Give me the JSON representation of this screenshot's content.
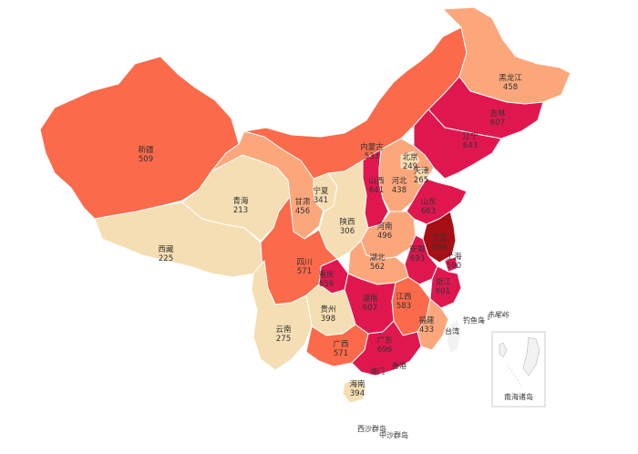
{
  "map": {
    "colors": {
      "level1": "#f5deb3",
      "level2": "#fca77b",
      "level3": "#fb6a4a",
      "level4": "#e0174f",
      "level5": "#a50f15",
      "neutral": "#f2f2f2",
      "border": "#ffffff",
      "water": "#ffffff"
    },
    "regions": {
      "xinjiang": {
        "name": "新疆",
        "value": "509"
      },
      "xizang": {
        "name": "西藏",
        "value": "225"
      },
      "qinghai": {
        "name": "青海",
        "value": "213"
      },
      "gansu": {
        "name": "甘肃",
        "value": "456"
      },
      "ningxia": {
        "name": "宁夏",
        "value": "341"
      },
      "neimenggu": {
        "name": "内蒙古",
        "value": "533"
      },
      "heilongjiang": {
        "name": "黑龙江",
        "value": "458"
      },
      "jilin": {
        "name": "吉林",
        "value": "607"
      },
      "liaoning": {
        "name": "辽宁",
        "value": "643"
      },
      "beijing": {
        "name": "北京",
        "value": "249"
      },
      "tianjin": {
        "name": "天津",
        "value": "265"
      },
      "hebei": {
        "name": "河北",
        "value": "438"
      },
      "shanxi": {
        "name": "山西",
        "value": "641"
      },
      "shandong": {
        "name": "山东",
        "value": "663"
      },
      "shaanxi": {
        "name": "陕西",
        "value": "306"
      },
      "henan": {
        "name": "河南",
        "value": "496"
      },
      "jiangsu": {
        "name": "江苏",
        "value": "939"
      },
      "anhui": {
        "name": "安徽",
        "value": "693"
      },
      "shanghai": {
        "name": "上海",
        "value": "590"
      },
      "hubei": {
        "name": "湖北",
        "value": "562"
      },
      "sichuan": {
        "name": "四川",
        "value": "571"
      },
      "chongqing": {
        "name": "重庆",
        "value": "656"
      },
      "zhejiang": {
        "name": "浙江",
        "value": "601"
      },
      "hunan": {
        "name": "湖南",
        "value": "607"
      },
      "jiangxi": {
        "name": "江西",
        "value": "583"
      },
      "guizhou": {
        "name": "贵州",
        "value": "398"
      },
      "yunnan": {
        "name": "云南",
        "value": "275"
      },
      "fujian": {
        "name": "福建",
        "value": "433"
      },
      "guangxi": {
        "name": "广西",
        "value": "571"
      },
      "guangdong": {
        "name": "广东",
        "value": "696"
      },
      "hainan": {
        "name": "海南",
        "value": "394"
      }
    },
    "place_labels": {
      "taiwan": "台湾",
      "aomen": "澳门",
      "xianggang": "香港",
      "diaoyudao": "钓鱼岛",
      "chiweiyu": "赤尾屿",
      "xisha": "西沙群岛",
      "zhongsha": "中沙群岛",
      "nanhai": "南海诸岛"
    }
  }
}
